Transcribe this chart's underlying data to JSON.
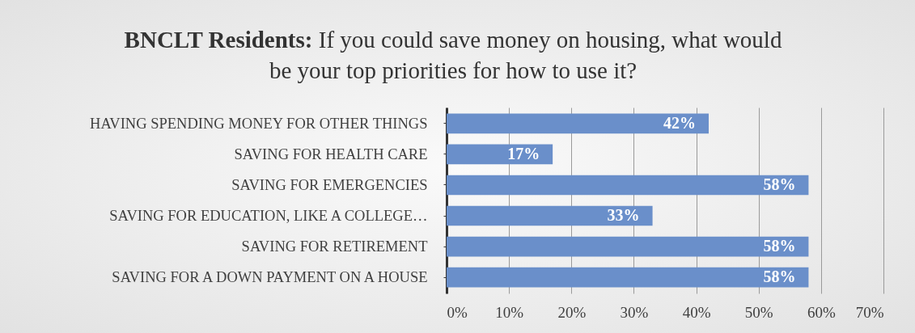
{
  "chart_data": {
    "type": "bar",
    "orientation": "horizontal",
    "title": "BNCLT Residents: If you could save money on housing, what would be your top priorities for how to use it?",
    "categories": [
      "HAVING SPENDING MONEY FOR OTHER THINGS",
      "SAVING FOR HEALTH CARE",
      "SAVING FOR EMERGENCIES",
      "SAVING FOR EDUCATION, LIKE A COLLEGE…",
      "SAVING FOR RETIREMENT",
      "SAVING FOR A DOWN PAYMENT ON A HOUSE"
    ],
    "values": [
      42,
      17,
      58,
      33,
      58,
      58
    ],
    "value_labels": [
      "42%",
      "17%",
      "58%",
      "33%",
      "58%",
      "58%"
    ],
    "color": "#6a8fca",
    "xlim": [
      0,
      70
    ],
    "xticks": [
      {
        "value": 0,
        "label": "0%"
      },
      {
        "value": 10,
        "label": "10%"
      },
      {
        "value": 20,
        "label": "20%"
      },
      {
        "value": 30,
        "label": "30%"
      },
      {
        "value": 40,
        "label": "40%"
      },
      {
        "value": 50,
        "label": "50%"
      },
      {
        "value": 60,
        "label": "60%"
      },
      {
        "value": 70,
        "label": "70%"
      }
    ],
    "grid": "x"
  }
}
